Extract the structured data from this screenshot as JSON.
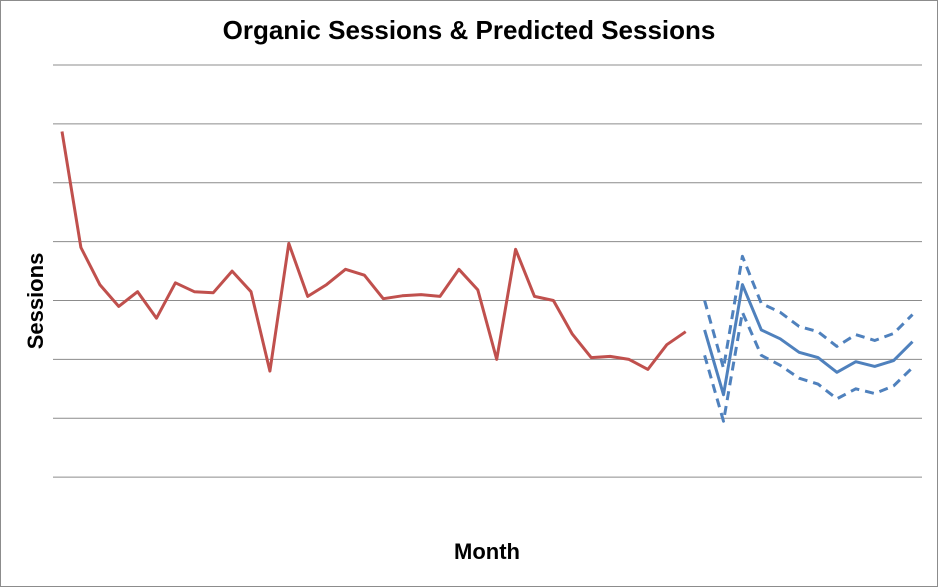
{
  "chart_data": {
    "type": "line",
    "title": "Organic Sessions & Predicted Sessions",
    "xlabel": "Month",
    "ylabel": "Sessions",
    "ylim": [
      0,
      8
    ],
    "grid": true,
    "y_gridlines": [
      1,
      2,
      3,
      4,
      5,
      6,
      7,
      8
    ],
    "x_count": 47,
    "colors": {
      "actual": "#c0504d",
      "predicted": "#4f81bd",
      "grid": "#8c8c8c"
    },
    "series": [
      {
        "values": [
          6.87,
          4.9,
          4.27,
          3.9,
          4.15,
          3.7,
          4.3,
          4.15,
          4.13,
          4.5,
          4.15,
          2.8,
          4.97,
          4.07,
          4.27,
          4.53,
          4.43,
          4.03,
          4.08,
          4.1,
          4.07,
          4.53,
          4.18,
          3.0,
          4.87,
          4.07,
          4.0,
          3.43,
          3.03,
          3.05,
          3.0,
          2.83,
          3.25,
          3.47,
          null,
          null,
          null,
          null,
          null,
          null,
          null,
          null,
          null,
          null,
          null,
          null,
          null
        ],
        "style": "solid",
        "color_key": "actual"
      },
      {
        "values": [
          null,
          null,
          null,
          null,
          null,
          null,
          null,
          null,
          null,
          null,
          null,
          null,
          null,
          null,
          null,
          null,
          null,
          null,
          null,
          null,
          null,
          null,
          null,
          null,
          null,
          null,
          null,
          null,
          null,
          null,
          null,
          null,
          null,
          null,
          3.5,
          2.4,
          4.27,
          3.5,
          3.35,
          3.12,
          3.03,
          2.78,
          2.96,
          2.88,
          2.98,
          3.3,
          null
        ],
        "style": "solid",
        "color_key": "predicted"
      },
      {
        "values": [
          null,
          null,
          null,
          null,
          null,
          null,
          null,
          null,
          null,
          null,
          null,
          null,
          null,
          null,
          null,
          null,
          null,
          null,
          null,
          null,
          null,
          null,
          null,
          null,
          null,
          null,
          null,
          null,
          null,
          null,
          null,
          null,
          null,
          null,
          4.0,
          2.85,
          4.75,
          3.95,
          3.8,
          3.56,
          3.47,
          3.22,
          3.42,
          3.32,
          3.44,
          3.76,
          null
        ],
        "style": "dashed",
        "color_key": "predicted"
      },
      {
        "values": [
          null,
          null,
          null,
          null,
          null,
          null,
          null,
          null,
          null,
          null,
          null,
          null,
          null,
          null,
          null,
          null,
          null,
          null,
          null,
          null,
          null,
          null,
          null,
          null,
          null,
          null,
          null,
          null,
          null,
          null,
          null,
          null,
          null,
          null,
          3.07,
          1.95,
          3.8,
          3.07,
          2.9,
          2.68,
          2.58,
          2.33,
          2.5,
          2.42,
          2.55,
          2.86,
          null
        ],
        "style": "dashed",
        "color_key": "predicted"
      }
    ]
  }
}
